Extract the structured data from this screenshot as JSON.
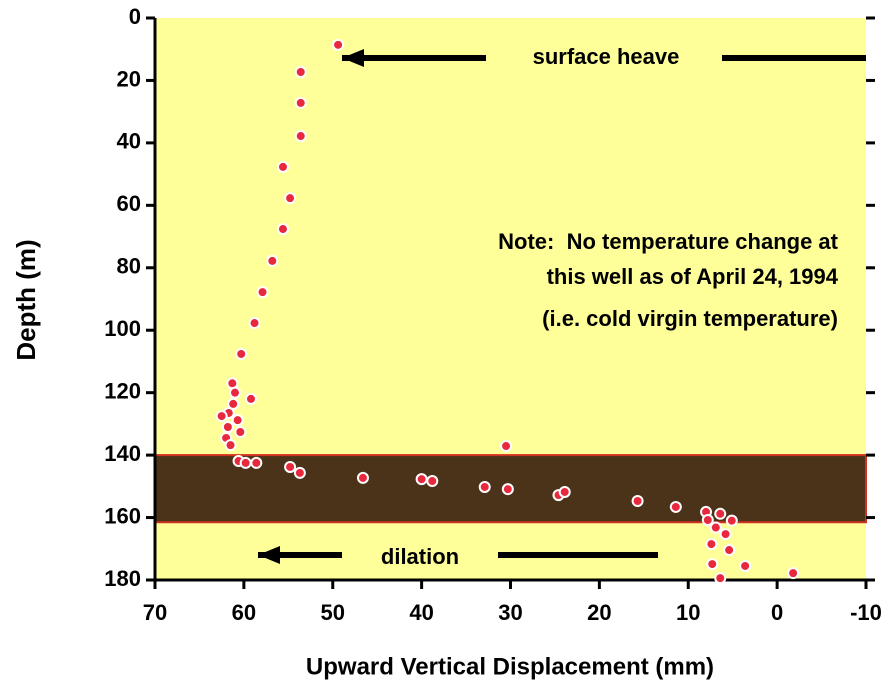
{
  "chart_data": {
    "type": "scatter",
    "x_label": "Upward Vertical Displacement (mm)",
    "y_label": "Depth (m)",
    "xlim": [
      70,
      -10
    ],
    "xticks": [
      70,
      60,
      50,
      40,
      30,
      20,
      10,
      0,
      -10
    ],
    "ylim": [
      0,
      180
    ],
    "yticks": [
      0,
      20,
      40,
      60,
      80,
      100,
      120,
      140,
      160,
      180
    ],
    "y_inverted": true,
    "background": "#ffff99",
    "highlight_band": [
      140,
      161.5
    ],
    "highlight_color": "#4a3318",
    "series": [
      {
        "color": "#e8283c",
        "x": [
          49.4,
          53.6,
          53.6,
          53.6,
          55.6,
          54.8,
          55.6,
          56.8,
          57.9,
          58.8,
          60.3,
          59.2,
          61.3,
          61.0,
          61.2,
          61.7,
          62.5,
          60.7,
          61.8,
          60.4,
          62.0,
          61.5,
          60.6,
          59.8,
          58.6,
          54.8,
          53.7,
          46.6,
          40.0,
          38.8,
          32.9,
          30.3,
          30.5,
          24.6,
          23.9,
          15.7,
          11.4,
          8.0,
          7.8,
          6.4,
          5.1,
          6.9,
          5.8,
          7.4,
          5.4,
          7.3,
          3.6,
          6.4,
          -1.8
        ],
        "values": [
          8.6,
          17.3,
          27.2,
          37.8,
          47.7,
          57.7,
          67.6,
          77.8,
          87.8,
          97.7,
          107.6,
          122,
          117,
          120,
          123.6,
          126.5,
          127.5,
          128.8,
          131,
          132.6,
          134.5,
          136.8,
          141.9,
          142.5,
          142.5,
          143.8,
          145.7,
          147.3,
          147.7,
          148.3,
          150.2,
          150.9,
          137.1,
          152.8,
          151.8,
          154.7,
          156.6,
          158.2,
          160.8,
          158.8,
          161,
          163.2,
          165.3,
          168.5,
          170.4,
          174.9,
          175.5,
          179.4,
          177.8
        ]
      }
    ],
    "annotations": {
      "surface_heave": "surface heave",
      "dilation": "dilation",
      "note": [
        "Note:  No temperature change at",
        "this well as of April 24, 1994",
        "(i.e. cold virgin temperature)"
      ]
    }
  }
}
